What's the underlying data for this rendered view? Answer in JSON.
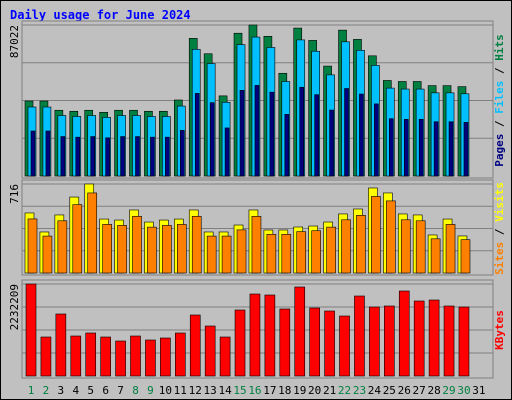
{
  "chart_data": {
    "type": "bar",
    "title": "Daily usage for June 2024",
    "categories": [
      "1",
      "2",
      "3",
      "4",
      "5",
      "6",
      "7",
      "8",
      "9",
      "10",
      "11",
      "12",
      "13",
      "14",
      "15",
      "16",
      "17",
      "18",
      "19",
      "20",
      "21",
      "22",
      "23",
      "24",
      "25",
      "26",
      "27",
      "28",
      "29",
      "30",
      "31"
    ],
    "category_colors": [
      "#008040",
      "#008040",
      "#000000",
      "#000000",
      "#000000",
      "#000000",
      "#000000",
      "#008040",
      "#008040",
      "#000000",
      "#000000",
      "#000000",
      "#000000",
      "#000000",
      "#008040",
      "#008040",
      "#000000",
      "#000000",
      "#000000",
      "#000000",
      "#000000",
      "#008040",
      "#008040",
      "#000000",
      "#000000",
      "#000000",
      "#000000",
      "#000000",
      "#008040",
      "#008040",
      "#000000"
    ],
    "legend_separator": "/",
    "panels": [
      {
        "ylim": [
          0,
          87022
        ],
        "yticks": [
          87022
        ],
        "series": [
          {
            "name": "Hits",
            "color": "#008040",
            "values": [
              43215,
              43215,
              37890,
              37296,
              37890,
              36704,
              37890,
              37890,
              37296,
              37296,
              43807,
              79326,
              70447,
              46175,
              82286,
              87022,
              80510,
              59199,
              85246,
              78142,
              63343,
              84062,
              78734,
              69263,
              55055,
              54463,
              54463,
              52095,
              52095,
              51503,
              null
            ]
          },
          {
            "name": "Files",
            "color": "#00c0ff",
            "values": [
              39758,
              39758,
              34859,
              34312,
              34859,
              33768,
              34859,
              34859,
              34312,
              34312,
              40302,
              72980,
              64811,
              42481,
              75703,
              80060,
              74069,
              54463,
              78426,
              71891,
              58276,
              77337,
              72435,
              63722,
              50651,
              50106,
              50106,
              47927,
              47927,
              47383,
              null
            ]
          },
          {
            "name": "Pages",
            "color": "#000080",
            "values": [
              25929,
              25929,
              22734,
              22378,
              22734,
              22022,
              22734,
              22734,
              22378,
              22378,
              26284,
              47596,
              42268,
              27705,
              49372,
              52213,
              48306,
              35519,
              51148,
              46885,
              38006,
              50437,
              47240,
              41558,
              33033,
              32678,
              32678,
              31257,
              31257,
              30902,
              null
            ]
          }
        ]
      },
      {
        "ylim": [
          0,
          716
        ],
        "yticks": [
          716
        ],
        "series": [
          {
            "name": "Visits",
            "color": "#ffff00",
            "values": [
              483,
              330,
              467,
              611,
              716,
              434,
              426,
              507,
              410,
              426,
              434,
              507,
              330,
              330,
              386,
              507,
              346,
              346,
              370,
              378,
              410,
              475,
              515,
              684,
              644,
              475,
              467,
              306,
              434,
              298,
              null
            ]
          },
          {
            "name": "Sites",
            "color": "#ff8000",
            "values": [
              435,
              297,
              420,
              550,
              644,
              391,
              383,
              456,
              369,
              383,
              391,
              456,
              297,
              297,
              347,
              456,
              311,
              311,
              333,
              340,
              369,
              428,
              464,
              616,
              580,
              428,
              420,
              275,
              391,
              268,
              null
            ]
          }
        ]
      },
      {
        "ylim": [
          0,
          2232209
        ],
        "yticks": [
          2232209
        ],
        "series": [
          {
            "name": "KBytes",
            "color": "#ff0000",
            "values": [
              2232209,
              946267,
              1504315,
              970526,
              1043315,
              946267,
              849210,
              970526,
              873474,
              922000,
              1043315,
              1480052,
              1213157,
              946267,
              1601367,
              1989577,
              1965314,
              1625630,
              2159419,
              1649893,
              1577104,
              1455788,
              1941051,
              1674157,
              1698420,
              2062367,
              1819736,
              1843999,
              1698420,
              1674157,
              null
            ]
          }
        ]
      }
    ]
  }
}
